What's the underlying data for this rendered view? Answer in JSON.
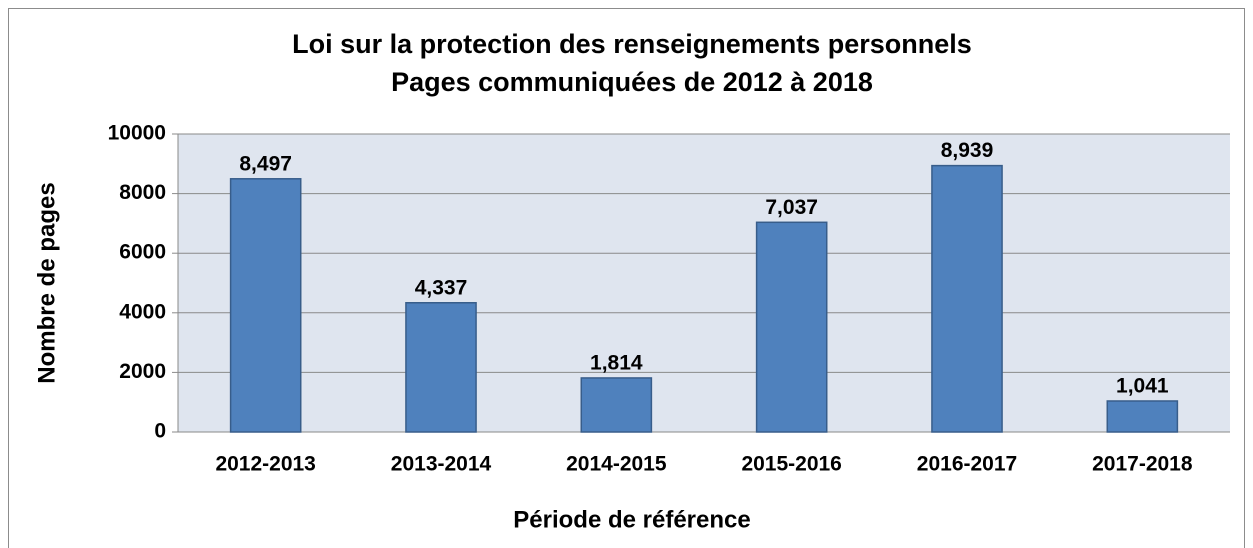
{
  "chart_data": {
    "type": "bar",
    "title": [
      "Loi sur la protection des renseignements personnels",
      "Pages communiquées de 2012 à 2018"
    ],
    "x_label": "Période de référence",
    "y_label": "Nombre de pages",
    "categories": [
      "2012-2013",
      "2013-2014",
      "2014-2015",
      "2015-2016",
      "2016-2017",
      "2017-2018"
    ],
    "values": [
      8497,
      4337,
      1814,
      7037,
      8939,
      1041
    ],
    "value_labels": [
      "8,497",
      "4,337",
      "1,814",
      "7,037",
      "8,939",
      "1,041"
    ],
    "color": "#4f81bd",
    "ylim": [
      0,
      10000
    ],
    "yticks": [
      0,
      2000,
      4000,
      6000,
      8000,
      10000
    ],
    "grid": true
  }
}
